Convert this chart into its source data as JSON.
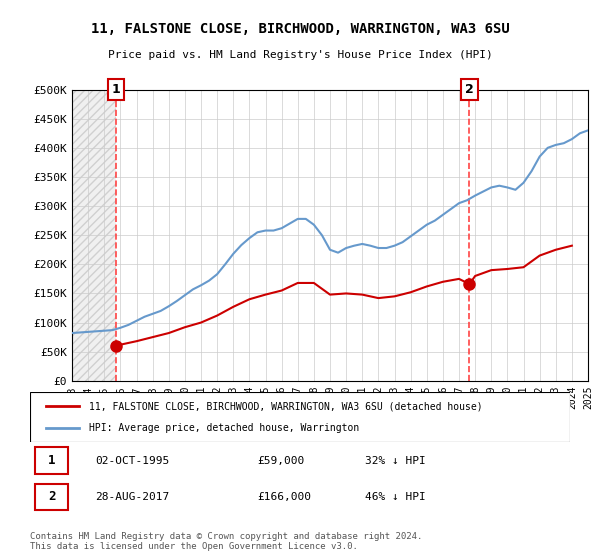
{
  "title": "11, FALSTONE CLOSE, BIRCHWOOD, WARRINGTON, WA3 6SU",
  "subtitle": "Price paid vs. HM Land Registry's House Price Index (HPI)",
  "legend_line1": "11, FALSTONE CLOSE, BIRCHWOOD, WARRINGTON, WA3 6SU (detached house)",
  "legend_line2": "HPI: Average price, detached house, Warrington",
  "annotation1_label": "1",
  "annotation1_date": "02-OCT-1995",
  "annotation1_price": "£59,000",
  "annotation1_hpi": "32% ↓ HPI",
  "annotation2_label": "2",
  "annotation2_date": "28-AUG-2017",
  "annotation2_price": "£166,000",
  "annotation2_hpi": "46% ↓ HPI",
  "footer": "Contains HM Land Registry data © Crown copyright and database right 2024.\nThis data is licensed under the Open Government Licence v3.0.",
  "sale1_x": 1995.75,
  "sale1_y": 59000,
  "sale2_x": 2017.65,
  "sale2_y": 166000,
  "property_color": "#cc0000",
  "hpi_color": "#6699cc",
  "vline_color": "#ff4444",
  "marker_color": "#cc0000",
  "background_hatch_color": "#e8e8e8",
  "grid_color": "#cccccc",
  "ylim": [
    0,
    500000
  ],
  "xlim": [
    1993,
    2025
  ],
  "yticks": [
    0,
    50000,
    100000,
    150000,
    200000,
    250000,
    300000,
    350000,
    400000,
    450000,
    500000
  ],
  "ytick_labels": [
    "£0",
    "£50K",
    "£100K",
    "£150K",
    "£200K",
    "£250K",
    "£300K",
    "£350K",
    "£400K",
    "£450K",
    "£500K"
  ],
  "xticks": [
    1993,
    1994,
    1995,
    1996,
    1997,
    1998,
    1999,
    2000,
    2001,
    2002,
    2003,
    2004,
    2005,
    2006,
    2007,
    2008,
    2009,
    2010,
    2011,
    2012,
    2013,
    2014,
    2015,
    2016,
    2017,
    2018,
    2019,
    2020,
    2021,
    2022,
    2023,
    2024,
    2025
  ],
  "hpi_data": {
    "years": [
      1993,
      1993.5,
      1994,
      1994.5,
      1995,
      1995.5,
      1996,
      1996.5,
      1997,
      1997.5,
      1998,
      1998.5,
      1999,
      1999.5,
      2000,
      2000.5,
      2001,
      2001.5,
      2002,
      2002.5,
      2003,
      2003.5,
      2004,
      2004.5,
      2005,
      2005.5,
      2006,
      2006.5,
      2007,
      2007.5,
      2008,
      2008.5,
      2009,
      2009.5,
      2010,
      2010.5,
      2011,
      2011.5,
      2012,
      2012.5,
      2013,
      2013.5,
      2014,
      2014.5,
      2015,
      2015.5,
      2016,
      2016.5,
      2017,
      2017.5,
      2018,
      2018.5,
      2019,
      2019.5,
      2020,
      2020.5,
      2021,
      2021.5,
      2022,
      2022.5,
      2023,
      2023.5,
      2024,
      2024.5,
      2025
    ],
    "values": [
      82000,
      83000,
      84000,
      85000,
      86000,
      87000,
      91000,
      96000,
      103000,
      110000,
      115000,
      120000,
      128000,
      137000,
      147000,
      157000,
      164000,
      172000,
      183000,
      200000,
      218000,
      233000,
      245000,
      255000,
      258000,
      258000,
      262000,
      270000,
      278000,
      278000,
      268000,
      250000,
      225000,
      220000,
      228000,
      232000,
      235000,
      232000,
      228000,
      228000,
      232000,
      238000,
      248000,
      258000,
      268000,
      275000,
      285000,
      295000,
      305000,
      310000,
      318000,
      325000,
      332000,
      335000,
      332000,
      328000,
      340000,
      360000,
      385000,
      400000,
      405000,
      408000,
      415000,
      425000,
      430000
    ]
  },
  "property_data": {
    "years": [
      1995.75,
      1996,
      1997,
      1998,
      1999,
      2000,
      2001,
      2002,
      2003,
      2004,
      2005,
      2006,
      2007,
      2008,
      2009,
      2010,
      2011,
      2012,
      2013,
      2014,
      2015,
      2016,
      2017,
      2017.65,
      2018,
      2019,
      2020,
      2021,
      2022,
      2023,
      2024
    ],
    "values": [
      59000,
      62000,
      68000,
      75000,
      82000,
      92000,
      100000,
      112000,
      127000,
      140000,
      148000,
      155000,
      168000,
      168000,
      148000,
      150000,
      148000,
      142000,
      145000,
      152000,
      162000,
      170000,
      175000,
      166000,
      180000,
      190000,
      192000,
      195000,
      215000,
      225000,
      232000
    ]
  }
}
